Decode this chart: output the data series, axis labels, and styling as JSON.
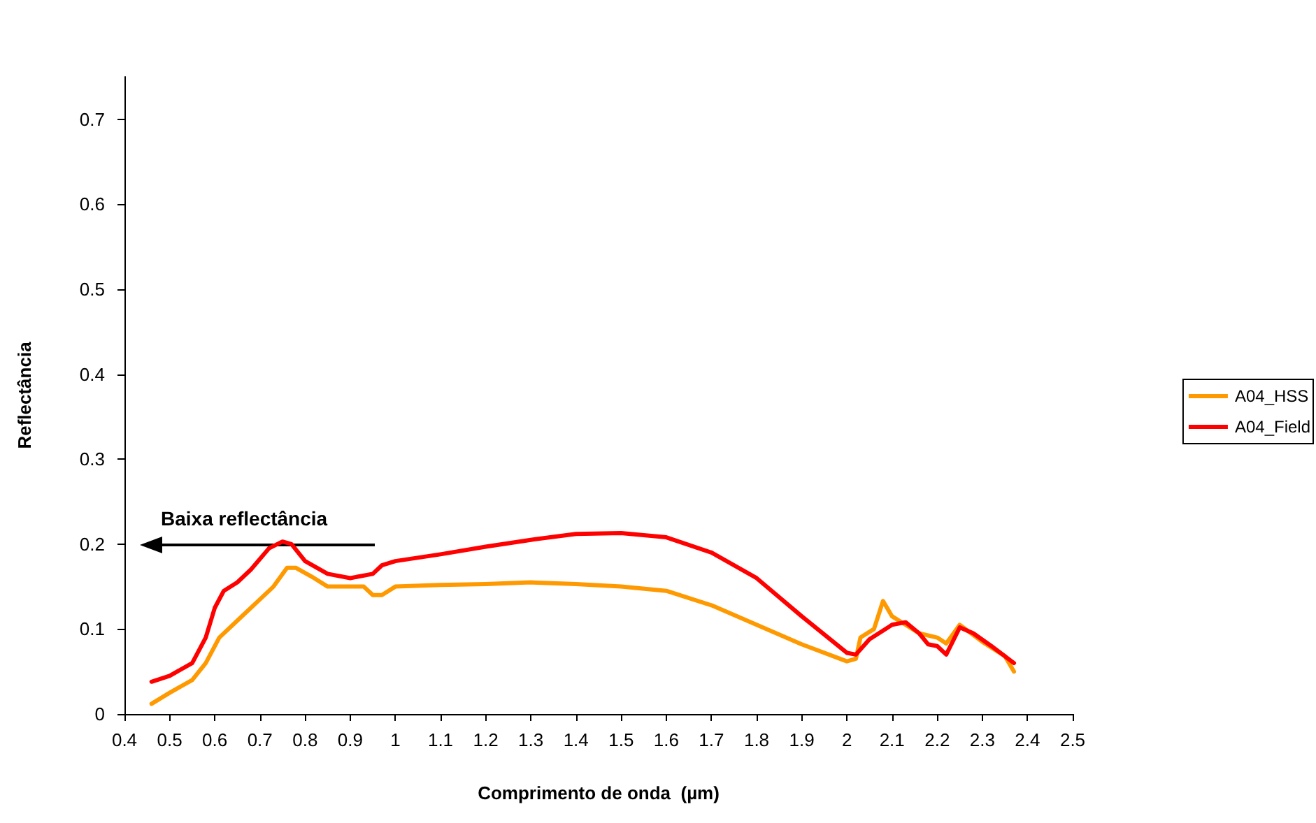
{
  "chart_data": {
    "type": "line",
    "xlabel": "Comprimento de onda  (µm)",
    "ylabel": "Reflectância",
    "xlim": [
      0.4,
      2.5
    ],
    "xticks": [
      0.4,
      0.5,
      0.6,
      0.7,
      0.8,
      0.9,
      1,
      1.1,
      1.2,
      1.3,
      1.4,
      1.5,
      1.6,
      1.7,
      1.8,
      1.9,
      2,
      2.1,
      2.2,
      2.3,
      2.4,
      2.5
    ],
    "ylim": [
      0,
      0.75
    ],
    "yticks": [
      0,
      0.1,
      0.2,
      0.3,
      0.4,
      0.5,
      0.6,
      0.7
    ],
    "grid": false,
    "legend": "right",
    "marker": "none",
    "line_style": "solid",
    "annotations": [
      "Baixa reflectância"
    ],
    "series": [
      {
        "name": "A04_HSS",
        "color": "#ff9900",
        "x": [
          0.46,
          0.5,
          0.55,
          0.58,
          0.61,
          0.65,
          0.7,
          0.73,
          0.76,
          0.78,
          0.82,
          0.85,
          0.9,
          0.93,
          0.95,
          0.97,
          1.0,
          1.1,
          1.2,
          1.3,
          1.4,
          1.5,
          1.6,
          1.7,
          1.8,
          1.9,
          2.0,
          2.02,
          2.03,
          2.06,
          2.08,
          2.1,
          2.13,
          2.16,
          2.2,
          2.22,
          2.25,
          2.3,
          2.35,
          2.37
        ],
        "values": [
          0.012,
          0.025,
          0.04,
          0.06,
          0.09,
          0.11,
          0.135,
          0.15,
          0.172,
          0.172,
          0.16,
          0.15,
          0.15,
          0.15,
          0.14,
          0.14,
          0.15,
          0.152,
          0.153,
          0.155,
          0.153,
          0.15,
          0.145,
          0.128,
          0.105,
          0.082,
          0.062,
          0.065,
          0.09,
          0.1,
          0.133,
          0.115,
          0.105,
          0.095,
          0.09,
          0.083,
          0.105,
          0.085,
          0.068,
          0.05
        ]
      },
      {
        "name": "A04_Field",
        "color": "#ff0000",
        "x": [
          0.46,
          0.5,
          0.55,
          0.58,
          0.6,
          0.62,
          0.65,
          0.68,
          0.72,
          0.75,
          0.77,
          0.8,
          0.85,
          0.9,
          0.95,
          0.97,
          1.0,
          1.1,
          1.2,
          1.3,
          1.4,
          1.5,
          1.6,
          1.7,
          1.8,
          1.9,
          2.0,
          2.02,
          2.05,
          2.1,
          2.13,
          2.16,
          2.18,
          2.2,
          2.22,
          2.25,
          2.28,
          2.32,
          2.37
        ],
        "values": [
          0.038,
          0.045,
          0.06,
          0.09,
          0.125,
          0.145,
          0.155,
          0.17,
          0.195,
          0.203,
          0.2,
          0.18,
          0.165,
          0.16,
          0.165,
          0.175,
          0.18,
          0.188,
          0.197,
          0.205,
          0.212,
          0.213,
          0.208,
          0.19,
          0.16,
          0.115,
          0.072,
          0.07,
          0.088,
          0.105,
          0.108,
          0.095,
          0.082,
          0.08,
          0.07,
          0.102,
          0.095,
          0.08,
          0.06
        ]
      }
    ]
  }
}
